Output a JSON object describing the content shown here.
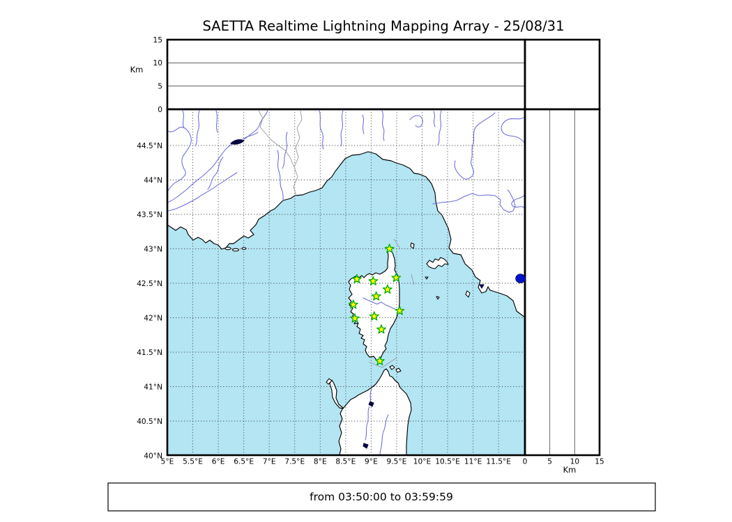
{
  "title": "SAETTA Realtime Lightning Mapping Array - 25/08/31",
  "time_window_label": "from 03:50:00 to 03:59:59",
  "axes": {
    "lon_tick_labels": [
      "5°E",
      "5.5°E",
      "6°E",
      "6.5°E",
      "7°E",
      "7.5°E",
      "8°E",
      "8.5°E",
      "9°E",
      "9.5°E",
      "10°E",
      "10.5°E",
      "11°E",
      "11.5°E"
    ],
    "lon_tick_values": [
      5,
      5.5,
      6,
      6.5,
      7,
      7.5,
      8,
      8.5,
      9,
      9.5,
      10,
      10.5,
      11,
      11.5
    ],
    "lat_tick_labels": [
      "40°N",
      "40.5°N",
      "41°N",
      "41.5°N",
      "42°N",
      "42.5°N",
      "43°N",
      "43.5°N",
      "44°N",
      "44.5°N"
    ],
    "lat_tick_values": [
      40,
      40.5,
      41,
      41.5,
      42,
      42.5,
      43,
      43.5,
      44,
      44.5
    ],
    "altitude_tick_labels": [
      "0",
      "5",
      "10",
      "15"
    ],
    "altitude_tick_values": [
      0,
      5,
      10,
      15
    ],
    "altitude_unit": "Km"
  },
  "chart_data": {
    "type": "scatter",
    "title": "SAETTA Realtime Lightning Mapping Array - 25/08/31",
    "date": "25/08/31",
    "time_window": "from 03:50:00 to 03:59:59",
    "map": {
      "lon_range_deg_e": [
        5,
        12
      ],
      "lat_range_deg_n": [
        40,
        45
      ],
      "grid_step_deg": 0.5,
      "grid_style": "dotted",
      "region": "Ligurian and Tyrrhenian Sea: French-Italian coast, Corsica, north Sardinia, Elba"
    },
    "altitude_panels": {
      "unit": "Km",
      "range_km": [
        0,
        15
      ],
      "ticks_km": [
        0,
        5,
        10,
        15
      ],
      "gridlines_km": [
        5,
        10
      ]
    },
    "stations": [
      {
        "lon_e": 9.36,
        "lat_n": 43.0
      },
      {
        "lon_e": 8.72,
        "lat_n": 42.56
      },
      {
        "lon_e": 9.04,
        "lat_n": 42.53
      },
      {
        "lon_e": 9.49,
        "lat_n": 42.58
      },
      {
        "lon_e": 9.32,
        "lat_n": 42.41
      },
      {
        "lon_e": 9.1,
        "lat_n": 42.31
      },
      {
        "lon_e": 8.65,
        "lat_n": 42.19
      },
      {
        "lon_e": 9.56,
        "lat_n": 42.1
      },
      {
        "lon_e": 9.06,
        "lat_n": 42.02
      },
      {
        "lon_e": 8.68,
        "lat_n": 41.99
      },
      {
        "lon_e": 9.2,
        "lat_n": 41.83
      },
      {
        "lon_e": 9.17,
        "lat_n": 41.37
      }
    ],
    "station_marker": "yellow star with green edge",
    "detections": [
      {
        "lon_e": 11.93,
        "lat_n": 42.57,
        "altitude_km": 0
      }
    ],
    "detection_marker": "blue filled dot"
  },
  "colors": {
    "sea": "#b3e5f3",
    "land": "#ffffff",
    "coastline": "#000000",
    "river": "#6b6be0",
    "lake": "#000040",
    "country_border": "#999999",
    "grid": "#555555",
    "station_fill": "#ffff00",
    "station_edge": "#00a800",
    "detection_fill": "#0011cc",
    "panel_border": "#000000"
  }
}
